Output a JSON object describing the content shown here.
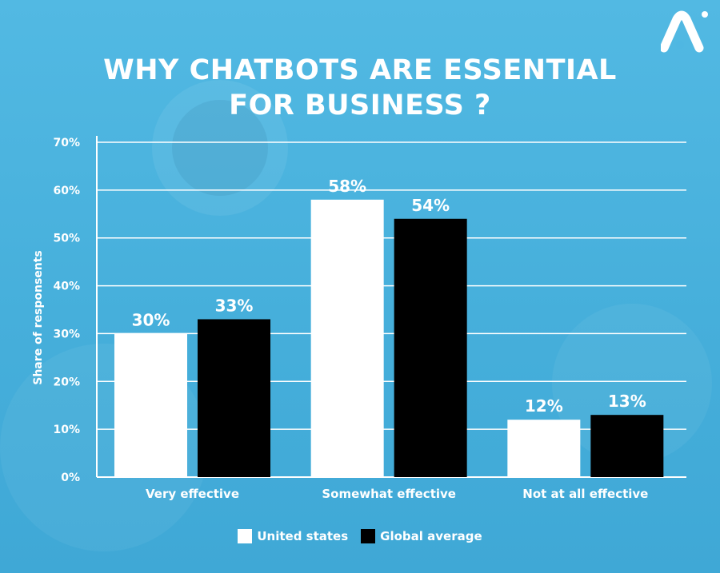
{
  "title": {
    "line1": "WHY CHATBOTS ARE ESSENTIAL",
    "line2": "FOR BUSINESS ?"
  },
  "logo": {
    "icon": "brand-a-logo-icon",
    "color": "#ffffff"
  },
  "chart_data": {
    "type": "bar",
    "categories": [
      "Very effective",
      "Somewhat effective",
      "Not at all effective"
    ],
    "series": [
      {
        "name": "United states",
        "values": [
          30,
          58,
          12
        ],
        "labels": [
          "30%",
          "58%",
          "12%"
        ],
        "color": "#ffffff"
      },
      {
        "name": "Global average",
        "values": [
          33,
          54,
          13
        ],
        "labels": [
          "33%",
          "54%",
          "13%"
        ],
        "color": "#000000"
      }
    ],
    "ylabel": "Share of responsents",
    "ylim": [
      0,
      70
    ],
    "yticks": [
      0,
      10,
      20,
      30,
      40,
      50,
      60,
      70
    ],
    "ytick_labels": [
      "0%",
      "10%",
      "20%",
      "30%",
      "40%",
      "50%",
      "60%",
      "70%"
    ],
    "grid": true,
    "legend_position": "bottom-center"
  }
}
